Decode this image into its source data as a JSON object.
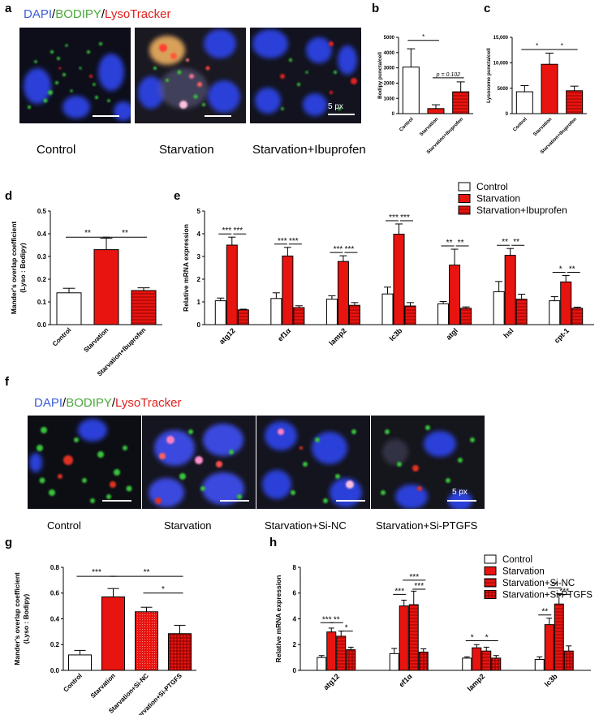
{
  "stain_label": {
    "dapi": "DAPI",
    "slash": "/",
    "bodipy": "BODIPY",
    "lyso": "LysoTracker"
  },
  "panels": {
    "a": "a",
    "b": "b",
    "c": "c",
    "d": "d",
    "e": "e",
    "f": "f",
    "g": "g",
    "h": "h"
  },
  "colors": {
    "control": "#ffffff",
    "starvation": "#e8140f",
    "ibu": "#e8140f",
    "outline": "#000000",
    "blue": "#3b5bd9",
    "green": "#4aa83a",
    "red": "#e0201c"
  },
  "panel_a": {
    "labels": [
      "Control",
      "Starvation",
      "Starvation+Ibuprofen"
    ],
    "scale": "5 px"
  },
  "panel_f": {
    "labels": [
      "Control",
      "Starvation",
      "Starvation+Si-NC",
      "Starvation+Si-PTGFS"
    ],
    "scale": "5 px"
  },
  "chart_data": [
    {
      "id": "b",
      "type": "bar",
      "ylabel": "Bodipy puncta/cell",
      "ylim": [
        0,
        5000
      ],
      "yticks": [
        0,
        1000,
        2000,
        3000,
        4000,
        5000
      ],
      "categories": [
        "Control",
        "Starvation",
        "Starvation+Ibuprofen"
      ],
      "values": [
        3050,
        330,
        1430
      ],
      "errors": [
        1200,
        250,
        650
      ],
      "annotations": [
        {
          "from": 0,
          "to": 1,
          "text": "*"
        },
        {
          "from": 1,
          "to": 2,
          "text": "p = 0.102"
        }
      ]
    },
    {
      "id": "c",
      "type": "bar",
      "ylabel": "Lysosome puncta/cell",
      "ylim": [
        0,
        15000
      ],
      "yticks": [
        "0",
        "5000",
        "10,000",
        "15,000"
      ],
      "categories": [
        "Control",
        "Starvation",
        "Starvation+Ibuprofen"
      ],
      "values": [
        4300,
        9700,
        4500
      ],
      "errors": [
        1200,
        2200,
        900
      ],
      "annotations": [
        {
          "from": 0,
          "to": 1,
          "text": "*"
        },
        {
          "from": 1,
          "to": 2,
          "text": "*"
        }
      ]
    },
    {
      "id": "d",
      "type": "bar",
      "ylabel": "Mander's overlap coefficient",
      "ylabel2": "(Lyso : Bodipy)",
      "ylim": [
        0,
        0.5
      ],
      "yticks": [
        "0.0",
        "0.1",
        "0.2",
        "0.3",
        "0.4",
        "0.5"
      ],
      "categories": [
        "Control",
        "Starvation",
        "Starvation+Ibuprofen"
      ],
      "values": [
        0.14,
        0.33,
        0.15
      ],
      "errors": [
        0.02,
        0.05,
        0.012
      ],
      "annotations": [
        {
          "from": 0,
          "to": 1,
          "text": "**"
        },
        {
          "from": 1,
          "to": 2,
          "text": "**"
        }
      ]
    },
    {
      "id": "e",
      "type": "bar",
      "ylabel": "Relative mRNA expression",
      "ylim": [
        0,
        5
      ],
      "yticks": [
        "0",
        "1",
        "2",
        "3",
        "4",
        "5"
      ],
      "categories": [
        "atg12",
        "ef1α",
        "lamp2",
        "lc3b",
        "atgl",
        "hsl",
        "cpt-1"
      ],
      "series": [
        {
          "name": "Control",
          "values": [
            1.05,
            1.15,
            1.12,
            1.35,
            0.92,
            1.45,
            1.05
          ],
          "errors": [
            0.12,
            0.25,
            0.15,
            0.3,
            0.1,
            0.45,
            0.18
          ]
        },
        {
          "name": "Starvation",
          "values": [
            3.5,
            3.02,
            2.78,
            3.98,
            2.62,
            3.05,
            1.88
          ],
          "errors": [
            0.35,
            0.38,
            0.25,
            0.45,
            0.7,
            0.3,
            0.28
          ]
        },
        {
          "name": "Starvation+Ibuprofen",
          "values": [
            0.65,
            0.75,
            0.85,
            0.82,
            0.72,
            1.12,
            0.72
          ],
          "errors": [
            0.03,
            0.08,
            0.12,
            0.15,
            0.06,
            0.22,
            0.05
          ]
        }
      ],
      "stars": [
        [
          "***",
          "***"
        ],
        [
          "***",
          "***"
        ],
        [
          "***",
          "***"
        ],
        [
          "***",
          "***"
        ],
        [
          "**",
          "**"
        ],
        [
          "**",
          "**"
        ],
        [
          "*",
          "**"
        ]
      ]
    },
    {
      "id": "g",
      "type": "bar",
      "ylabel": "Mander's overlap coefficient",
      "ylabel2": "(Lyso : Bodipy)",
      "ylim": [
        0,
        0.8
      ],
      "yticks": [
        "0.0",
        "0.2",
        "0.4",
        "0.6",
        "0.8"
      ],
      "categories": [
        "Control",
        "Starvation",
        "Starvation+Si-NC",
        "Starvation+Si-PTGFS"
      ],
      "values": [
        0.12,
        0.57,
        0.455,
        0.285
      ],
      "errors": [
        0.035,
        0.065,
        0.035,
        0.065
      ],
      "annotations": [
        {
          "from": 0,
          "to": 1,
          "text": "***",
          "level": 0.73
        },
        {
          "from": 1,
          "to": 3,
          "text": "**",
          "level": 0.73
        },
        {
          "from": 2,
          "to": 3,
          "text": "*",
          "level": 0.6
        }
      ]
    },
    {
      "id": "h",
      "type": "bar",
      "ylabel": "Relative mRNA expression",
      "ylim": [
        0,
        8
      ],
      "yticks": [
        "0",
        "2",
        "4",
        "6",
        "8"
      ],
      "categories": [
        "atg12",
        "ef1α",
        "lamp2",
        "lc3b"
      ],
      "series": [
        {
          "name": "Control",
          "values": [
            1.0,
            1.3,
            0.95,
            0.85
          ],
          "errors": [
            0.15,
            0.4,
            0.1,
            0.2
          ]
        },
        {
          "name": "Starvation",
          "values": [
            2.98,
            5.0,
            1.75,
            3.55
          ],
          "errors": [
            0.3,
            0.45,
            0.25,
            0.5
          ]
        },
        {
          "name": "Starvation+Si-NC",
          "values": [
            2.65,
            5.1,
            1.5,
            5.15
          ],
          "errors": [
            0.4,
            1.05,
            0.3,
            0.8
          ]
        },
        {
          "name": "Starvation+Si-PTGFS",
          "values": [
            1.6,
            1.42,
            0.95,
            1.5
          ],
          "errors": [
            0.2,
            0.25,
            0.2,
            0.4
          ]
        }
      ],
      "brackets": [
        {
          "cat": 0,
          "a": 0,
          "b": 1,
          "text": "***",
          "y": 3.7
        },
        {
          "cat": 0,
          "a": 1,
          "b": 2,
          "text": "**",
          "y": 3.7
        },
        {
          "cat": 0,
          "a": 2,
          "b": 3,
          "text": "*",
          "y": 3.05
        },
        {
          "cat": 1,
          "a": 0,
          "b": 1,
          "text": "***",
          "y": 5.9
        },
        {
          "cat": 1,
          "a": 1,
          "b": 3,
          "text": "***",
          "y": 7.0
        },
        {
          "cat": 1,
          "a": 2,
          "b": 3,
          "text": "***",
          "y": 6.3
        },
        {
          "cat": 2,
          "a": 0,
          "b": 1,
          "text": "*",
          "y": 2.3
        },
        {
          "cat": 2,
          "a": 1,
          "b": 3,
          "text": "*",
          "y": 2.3
        },
        {
          "cat": 3,
          "a": 0,
          "b": 1,
          "text": "**",
          "y": 4.3
        },
        {
          "cat": 3,
          "a": 1,
          "b": 2,
          "text": "**",
          "y": 6.4
        },
        {
          "cat": 3,
          "a": 2,
          "b": 3,
          "text": "***",
          "y": 5.9
        }
      ]
    }
  ]
}
